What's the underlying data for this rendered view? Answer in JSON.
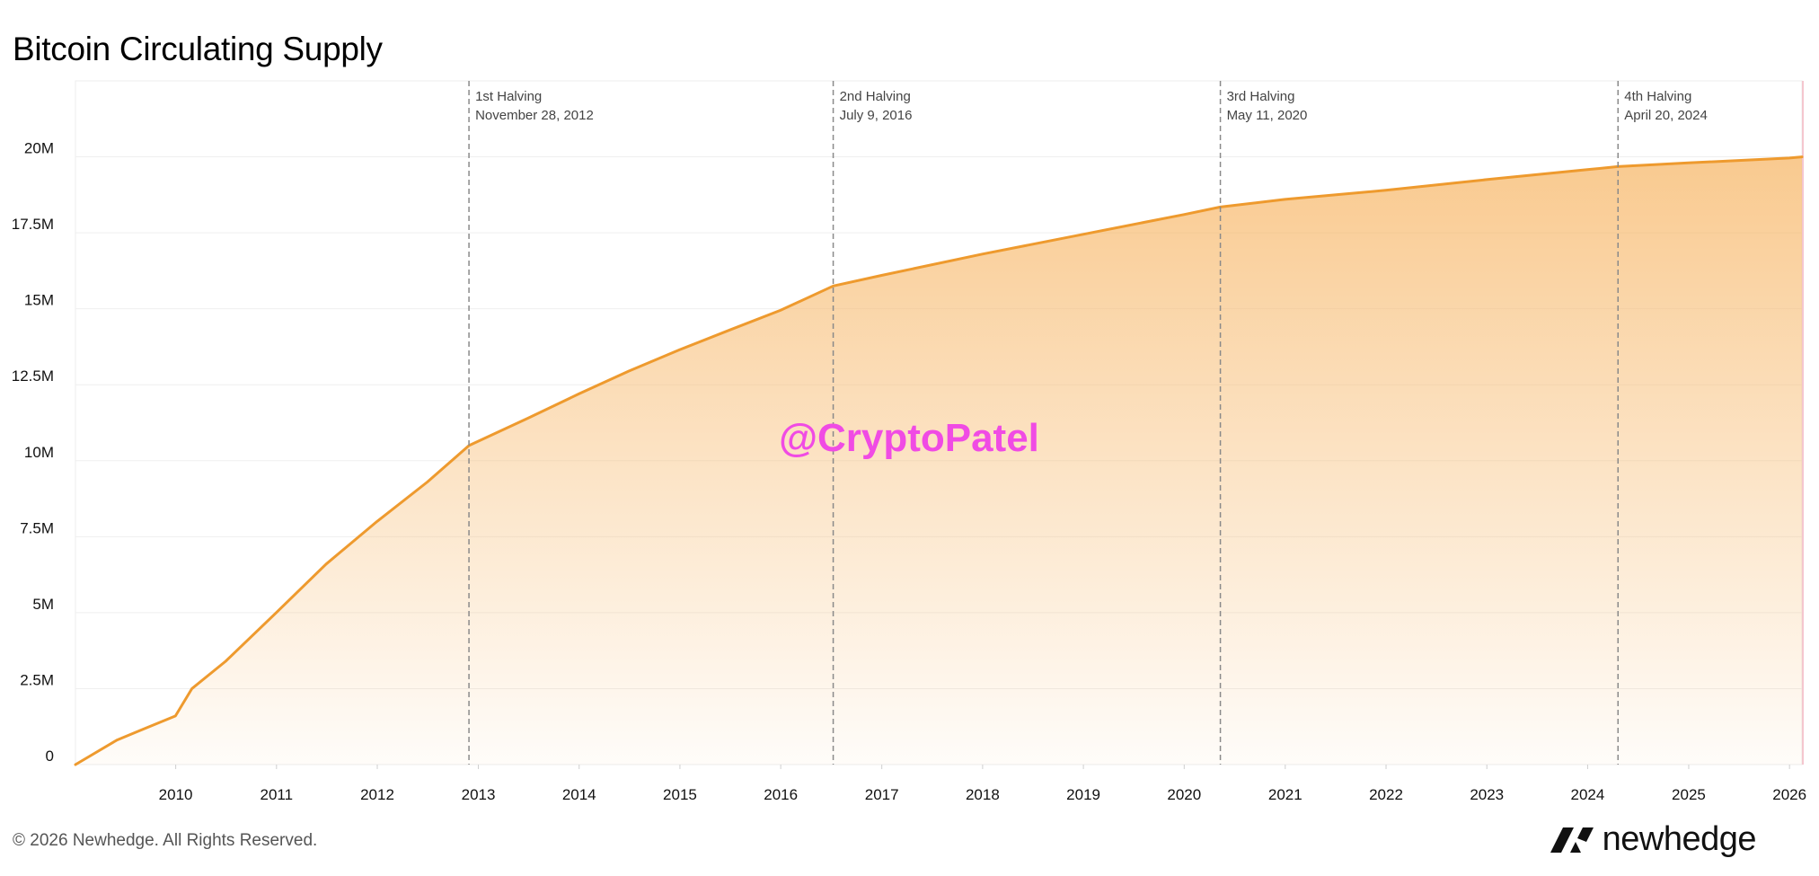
{
  "chart_data": {
    "type": "area",
    "title": "Bitcoin Circulating Supply",
    "xlabel": "",
    "ylabel": "",
    "x_tick_labels": [
      "2010",
      "2011",
      "2012",
      "2013",
      "2014",
      "2015",
      "2016",
      "2017",
      "2018",
      "2019",
      "2020",
      "2021",
      "2022",
      "2023",
      "2024",
      "2025",
      "2026"
    ],
    "y_tick_labels": [
      "0",
      "2.5M",
      "5M",
      "7.5M",
      "10M",
      "12.5M",
      "15M",
      "17.5M",
      "20M"
    ],
    "xlim": [
      "2009-01-03",
      "2026-02-15"
    ],
    "ylim": [
      0,
      22500000
    ],
    "grid": true,
    "series": [
      {
        "x": [
          "2009-01-03",
          "2009-06-01",
          "2009-09-01",
          "2009-12-31",
          "2010-03-01",
          "2010-07-01",
          "2010-12-31",
          "2011-06-30",
          "2011-12-31",
          "2012-06-30",
          "2012-11-28",
          "2013-06-30",
          "2013-12-31",
          "2014-06-30",
          "2014-12-31",
          "2015-06-30",
          "2015-12-31",
          "2016-07-09",
          "2016-12-31",
          "2017-12-31",
          "2018-12-31",
          "2019-12-31",
          "2020-05-11",
          "2020-12-31",
          "2021-12-31",
          "2022-12-31",
          "2023-12-31",
          "2024-04-20",
          "2024-12-31",
          "2025-12-31",
          "2026-02-15"
        ],
        "values": [
          0,
          800000,
          1150000,
          1600000,
          2500000,
          3400000,
          5000000,
          6600000,
          8000000,
          9300000,
          10500000,
          11400000,
          12200000,
          12950000,
          13650000,
          14300000,
          14950000,
          15750000,
          16100000,
          16800000,
          17450000,
          18100000,
          18350000,
          18600000,
          18900000,
          19250000,
          19580000,
          19680000,
          19800000,
          19960000,
          20000000
        ]
      }
    ],
    "annotations": [
      {
        "title": "1st Halving",
        "date": "November 28, 2012",
        "x": "2012-11-28"
      },
      {
        "title": "2nd Halving",
        "date": "July 9, 2016",
        "x": "2016-07-09"
      },
      {
        "title": "3rd Halving",
        "date": "May 11, 2020",
        "x": "2020-05-11"
      },
      {
        "title": "4th Halving",
        "date": "April 20, 2024",
        "x": "2024-04-20"
      }
    ],
    "colors": {
      "line": "#EE9A2E",
      "fill": "#F7B86A",
      "marker": "#8a8a8a",
      "watermark": "#F04BE4"
    }
  },
  "watermark": "@CryptoPatel",
  "footer": "© 2026 Newhedge. All Rights Reserved.",
  "brand": {
    "name": "newhedge",
    "icon": "newhedge-logo-icon"
  }
}
